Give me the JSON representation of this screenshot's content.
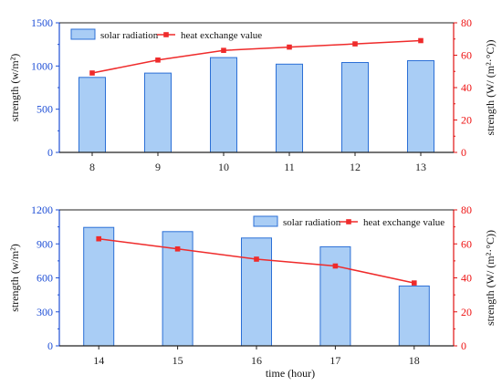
{
  "colors": {
    "bar_fill": "#a9cdf5",
    "bar_stroke": "#2b6fd6",
    "left_axis": "#1f4fd6",
    "line": "#ef2b2b",
    "right_axis": "#e11111"
  },
  "chart_data": [
    {
      "type": "bar",
      "categories": [
        "8",
        "9",
        "10",
        "11",
        "12",
        "13"
      ],
      "series": [
        {
          "name": "solar radiation",
          "axis": "left",
          "values": [
            868,
            918,
            1098,
            1022,
            1040,
            1062
          ]
        },
        {
          "name": "heat exchange value",
          "axis": "right",
          "type": "line",
          "values": [
            49,
            57,
            63,
            65,
            67,
            69
          ]
        }
      ],
      "ylabel": "strength (w/m²)",
      "ylabel_right": "strength (W/ (m²·°C))",
      "xlabel": "",
      "ylim": [
        0,
        1500
      ],
      "yticks": [
        "0",
        "500",
        "1000",
        "1500"
      ],
      "ylim_right": [
        0,
        80
      ],
      "yticks_right": [
        "0",
        "20",
        "40",
        "60",
        "80"
      ],
      "legend": "top"
    },
    {
      "type": "bar",
      "categories": [
        "14",
        "15",
        "16",
        "17",
        "18"
      ],
      "series": [
        {
          "name": "solar radiation",
          "axis": "left",
          "values": [
            1045,
            1008,
            952,
            875,
            528
          ]
        },
        {
          "name": "heat exchange value",
          "axis": "right",
          "type": "line",
          "values": [
            63,
            57,
            51,
            47,
            37
          ]
        }
      ],
      "ylabel": "strength (w/m²)",
      "ylabel_right": "strength (W/ (m²·°C))",
      "xlabel": "time (hour)",
      "ylim": [
        0,
        1200
      ],
      "yticks": [
        "0",
        "300",
        "600",
        "900",
        "1200"
      ],
      "ylim_right": [
        0,
        80
      ],
      "yticks_right": [
        "0",
        "20",
        "40",
        "60",
        "80"
      ],
      "legend": "top-right"
    }
  ]
}
